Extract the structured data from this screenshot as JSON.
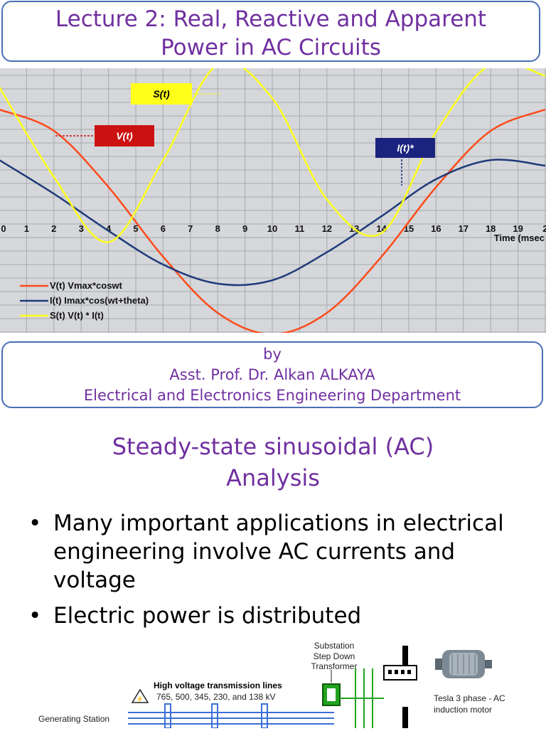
{
  "title": {
    "line1": "Lecture 2: Real, Reactive and Apparent",
    "line2": "Power in AC Circuits"
  },
  "chart_data": {
    "type": "line",
    "x_ticks": [
      "0",
      "1",
      "2",
      "3",
      "4",
      "5",
      "6",
      "7",
      "8",
      "9",
      "10",
      "11",
      "12",
      "13",
      "14",
      "15",
      "16",
      "17",
      "18",
      "19",
      "2"
    ],
    "x_axis_label": "Time (msec",
    "series": [
      {
        "name": "V(t) Vmax*coswt",
        "color": "#ff4a1a",
        "x": [
          0,
          2,
          4,
          6,
          8,
          10,
          12,
          14,
          16,
          18,
          20
        ],
        "y": [
          1.0,
          0.81,
          0.31,
          -0.31,
          -0.81,
          -1.0,
          -0.81,
          -0.31,
          0.31,
          0.81,
          1.0
        ]
      },
      {
        "name": "I(t) Imax*cos(wt+theta)",
        "color": "#1f3a7a",
        "x": [
          0,
          2,
          4,
          6,
          8,
          10,
          12,
          14,
          16,
          18,
          20
        ],
        "y": [
          0.55,
          0.25,
          -0.08,
          -0.38,
          -0.55,
          -0.52,
          -0.27,
          0.05,
          0.38,
          0.55,
          0.5
        ]
      },
      {
        "name": "S(t) V(t) * I(t)",
        "color": "#ffff1a",
        "x": [
          0,
          2,
          4,
          6,
          8,
          10,
          12,
          14,
          16,
          18,
          20
        ],
        "y": [
          1.2,
          0.4,
          -0.18,
          0.55,
          1.4,
          1.1,
          0.2,
          -0.1,
          0.8,
          1.4,
          1.3
        ]
      }
    ],
    "callouts": [
      {
        "label": "S(t)",
        "bg": "#ffff1a",
        "fg": "#000000"
      },
      {
        "label": "V(t)",
        "bg": "#cc1111",
        "fg": "#ffffff"
      },
      {
        "label": "I(t)*",
        "bg": "#1a237e",
        "fg": "#ffffff"
      }
    ]
  },
  "author": {
    "by": "by",
    "name": "Asst. Prof. Dr. Alkan ALKAYA",
    "dept": "Electrical and Electronics Engineering Department"
  },
  "section": {
    "heading_line1": "Steady-state sinusoidal (AC)",
    "heading_line2": "Analysis"
  },
  "bullets": [
    {
      "marker": "•",
      "text": "Many important applications in electrical engineering involve AC currents and voltage"
    },
    {
      "marker": "•",
      "text": "Electric power is distributed"
    }
  ],
  "figure": {
    "substation": "Substation Step Down Transformer",
    "substation_l1": "Substation",
    "substation_l2": "Step Down",
    "substation_l3": "Transformer",
    "hv_title": "High voltage transmission lines",
    "hv_values": "765, 500, 345, 230, and 138 kV",
    "motor_l1": "Tesla 3 phase - AC",
    "motor_l2": "induction motor",
    "gen": "Generating Station"
  }
}
